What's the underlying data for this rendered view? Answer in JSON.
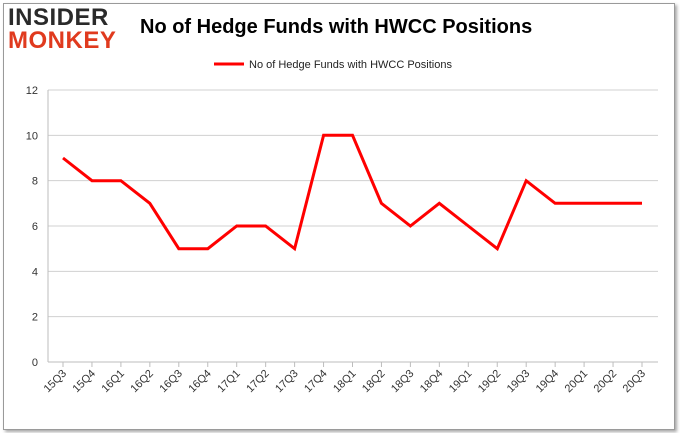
{
  "branding": {
    "logo_line1": "INSIDER",
    "logo_line2": "MONKEY"
  },
  "chart_data": {
    "type": "line",
    "title": "No of Hedge Funds with HWCC Positions",
    "xlabel": "",
    "ylabel": "",
    "categories": [
      "15Q3",
      "15Q4",
      "16Q1",
      "16Q2",
      "16Q3",
      "16Q4",
      "17Q1",
      "17Q2",
      "17Q3",
      "17Q4",
      "18Q1",
      "18Q2",
      "18Q3",
      "18Q4",
      "19Q1",
      "19Q2",
      "19Q3",
      "19Q4",
      "20Q1",
      "20Q2",
      "20Q3"
    ],
    "series": [
      {
        "name": "No of Hedge Funds with HWCC Positions",
        "color": "#ff0000",
        "values": [
          9,
          8,
          8,
          7,
          5,
          5,
          6,
          6,
          5,
          10,
          10,
          7,
          6,
          7,
          6,
          5,
          8,
          7,
          7,
          7,
          7
        ]
      }
    ],
    "ylim": [
      0,
      12
    ],
    "yticks": [
      0,
      2,
      4,
      6,
      8,
      10,
      12
    ],
    "grid": true,
    "legend": "top-center"
  }
}
